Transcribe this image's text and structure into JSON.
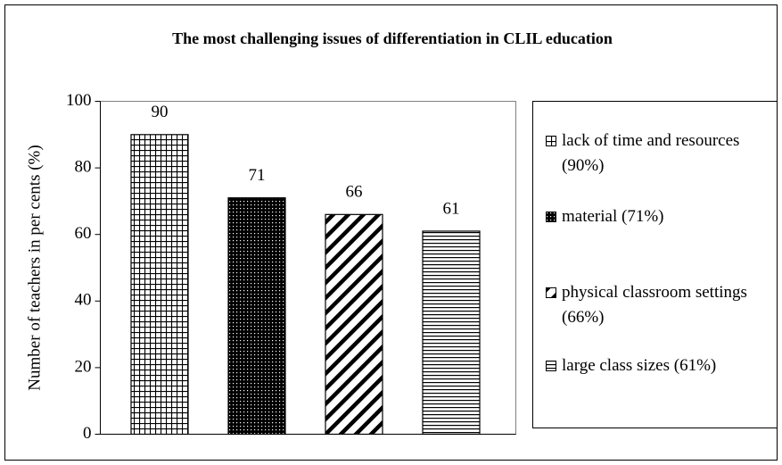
{
  "chart_data": {
    "type": "bar",
    "title": "The most challenging issues of differentiation in CLIL education",
    "y_label": "Number of teachers in per cents (%)",
    "series": [
      {
        "name": "lack of time and resources (90%)",
        "pattern": "grid",
        "color": "#000000",
        "values": [
          90
        ]
      },
      {
        "name": "material (71%)",
        "pattern": "dots",
        "color": "#000000",
        "values": [
          71
        ]
      },
      {
        "name": "physical classroom settings (66%)",
        "pattern": "diagonal",
        "color": "#000000",
        "values": [
          66
        ]
      },
      {
        "name": "large class sizes (61%)",
        "pattern": "horizontal",
        "color": "#000000",
        "values": [
          61
        ]
      }
    ],
    "ylim": [
      0,
      100
    ],
    "yticks": [
      0,
      20,
      40,
      60,
      80,
      100
    ],
    "grid": false,
    "legend": "right"
  }
}
